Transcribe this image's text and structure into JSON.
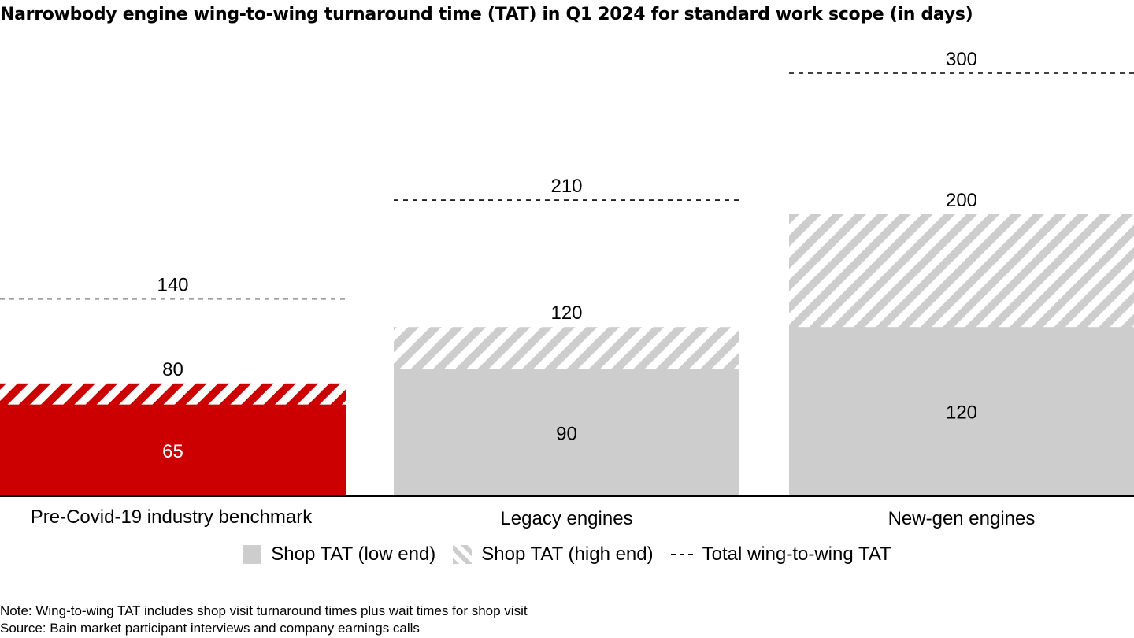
{
  "title": "Narrowbody engine wing-to-wing turnaround time (TAT) in Q1 2024 for standard work scope (in days)",
  "chart_data": {
    "type": "bar",
    "title": "Narrowbody engine wing-to-wing turnaround time (TAT) in Q1 2024 for standard work scope (in days)",
    "categories": [
      "Pre-Covid-19 industry benchmark",
      "Legacy engines",
      "New-gen engines"
    ],
    "series": [
      {
        "name": "Shop TAT (low end)",
        "values": [
          65,
          90,
          120
        ]
      },
      {
        "name": "Shop TAT (high end)",
        "values": [
          80,
          120,
          200
        ]
      },
      {
        "name": "Total wing-to-wing TAT",
        "values": [
          140,
          210,
          300
        ]
      }
    ],
    "value_labels": {
      "low": [
        "65",
        "90",
        "120"
      ],
      "high": [
        "80",
        "120",
        "200"
      ],
      "total": [
        "140",
        "210",
        "300"
      ]
    },
    "ylim": [
      0,
      300
    ],
    "xlabel": "",
    "ylabel": "",
    "grid": false,
    "legend_position": "bottom"
  },
  "colors": {
    "highlight": "#cc0000",
    "neutral": "#cdcdcd",
    "hatch_background": "#ffffff",
    "axis": "#000000"
  },
  "legend": {
    "low": "Shop TAT (low end)",
    "high": "Shop TAT (high end)",
    "total": "Total wing-to-wing TAT"
  },
  "notes": {
    "note": "Note: Wing-to-wing TAT includes shop visit turnaround times plus wait times for shop visit",
    "source": "Source: Bain market participant interviews and company earnings calls"
  }
}
